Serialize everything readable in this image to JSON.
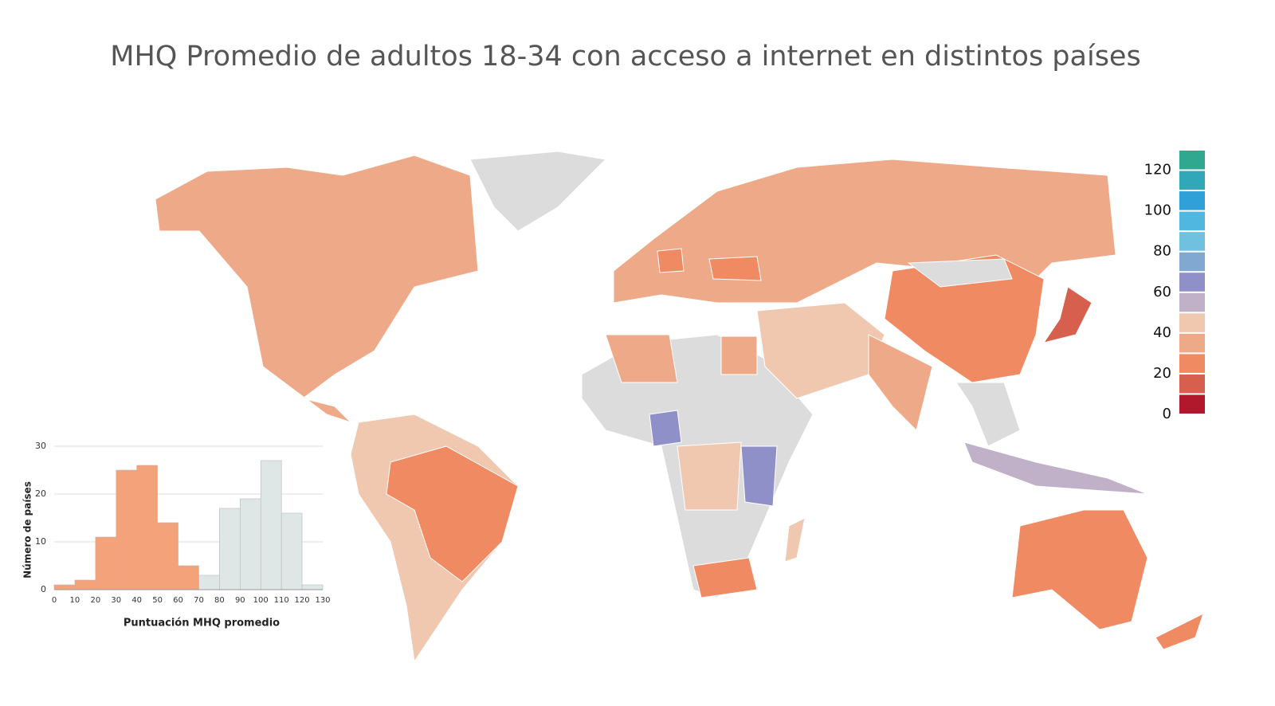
{
  "title": "MHQ Promedio de adultos 18-34 con acceso a internet en distintos países",
  "legend": {
    "lim": [
      0,
      130
    ],
    "ticks": [
      0,
      20,
      40,
      60,
      80,
      100,
      120
    ],
    "colors": [
      "#b2182b",
      "#d6604d",
      "#ef8a62",
      "#eeaa88",
      "#f0c8b0",
      "#c0b0c8",
      "#9090c8",
      "#80a8d0",
      "#70c0e0",
      "#50b8e0",
      "#30a0d8",
      "#30a8b8",
      "#30a890"
    ]
  },
  "chart_data": {
    "type": "histogram",
    "bins": [
      0,
      10,
      20,
      30,
      40,
      50,
      60,
      70,
      80,
      90,
      100,
      110,
      120,
      130
    ],
    "series": [
      {
        "color": "#dfe6e6",
        "values": [
          0,
          0,
          0,
          0,
          0,
          0,
          1,
          3,
          17,
          19,
          27,
          16,
          1
        ]
      },
      {
        "color": "#f4a27a",
        "values": [
          1,
          2,
          11,
          25,
          26,
          14,
          5,
          0,
          0,
          0,
          0,
          0,
          0
        ]
      }
    ],
    "xlabel": "Puntuación MHQ promedio",
    "ylabel": "Número de países",
    "xlim": [
      0,
      130
    ],
    "ylim": [
      0,
      30
    ],
    "xticks": [
      0,
      10,
      20,
      30,
      40,
      50,
      60,
      70,
      80,
      90,
      100,
      110,
      120,
      130
    ],
    "yticks": [
      0,
      10,
      20,
      30
    ],
    "grid": true
  }
}
